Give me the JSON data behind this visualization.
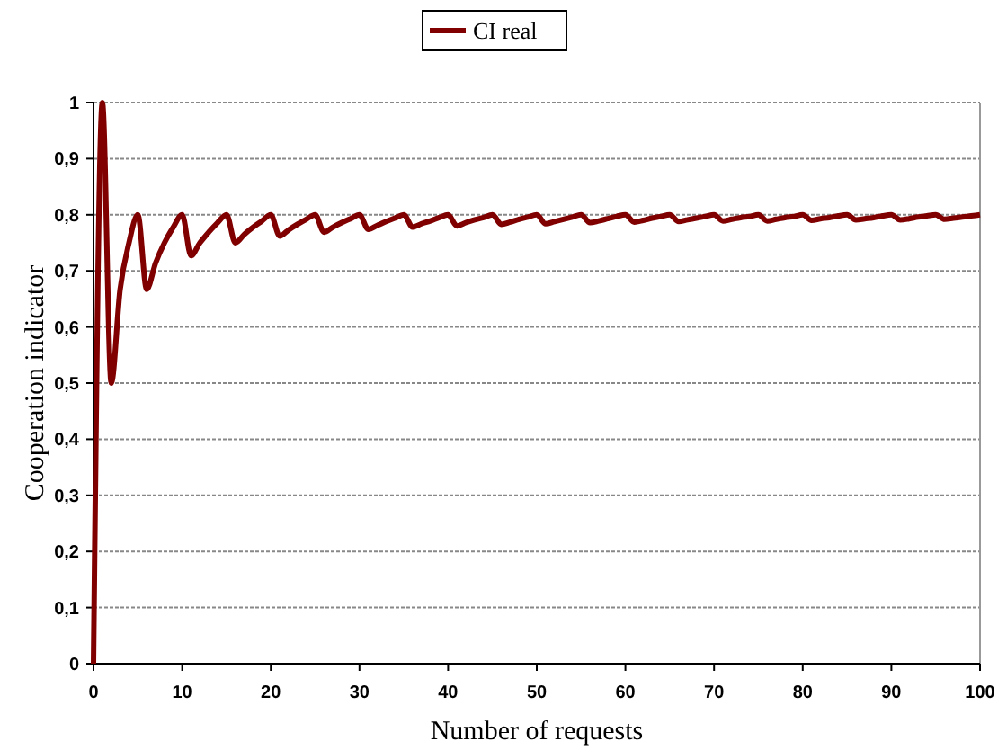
{
  "chart_data": {
    "type": "line",
    "xlabel": "Number of requests",
    "ylabel": "Cooperation indicator",
    "x": [
      0,
      1,
      2,
      3,
      4,
      5,
      6,
      7,
      8,
      9,
      10,
      11,
      12,
      13,
      14,
      15,
      16,
      17,
      18,
      19,
      20,
      21,
      22,
      23,
      24,
      25,
      26,
      27,
      28,
      29,
      30,
      31,
      32,
      33,
      34,
      35,
      36,
      37,
      38,
      39,
      40,
      41,
      42,
      43,
      44,
      45,
      46,
      47,
      48,
      49,
      50,
      51,
      52,
      53,
      54,
      55,
      56,
      57,
      58,
      59,
      60,
      61,
      62,
      63,
      64,
      65,
      66,
      67,
      68,
      69,
      70,
      71,
      72,
      73,
      74,
      75,
      76,
      77,
      78,
      79,
      80,
      81,
      82,
      83,
      84,
      85,
      86,
      87,
      88,
      89,
      90,
      91,
      92,
      93,
      94,
      95,
      96,
      97,
      98,
      99,
      100
    ],
    "series": [
      {
        "name": "CI real",
        "color": "#800000",
        "values": [
          0,
          1,
          0.5,
          0.667,
          0.75,
          0.8,
          0.667,
          0.714,
          0.75,
          0.778,
          0.8,
          0.727,
          0.75,
          0.769,
          0.786,
          0.8,
          0.75,
          0.765,
          0.778,
          0.789,
          0.8,
          0.762,
          0.773,
          0.783,
          0.792,
          0.8,
          0.769,
          0.778,
          0.786,
          0.793,
          0.8,
          0.774,
          0.781,
          0.788,
          0.794,
          0.8,
          0.778,
          0.784,
          0.789,
          0.795,
          0.8,
          0.78,
          0.786,
          0.791,
          0.795,
          0.8,
          0.783,
          0.787,
          0.792,
          0.796,
          0.8,
          0.784,
          0.788,
          0.792,
          0.796,
          0.8,
          0.786,
          0.789,
          0.793,
          0.797,
          0.8,
          0.787,
          0.79,
          0.794,
          0.797,
          0.8,
          0.788,
          0.791,
          0.794,
          0.797,
          0.8,
          0.789,
          0.792,
          0.795,
          0.797,
          0.8,
          0.789,
          0.792,
          0.795,
          0.797,
          0.8,
          0.79,
          0.793,
          0.795,
          0.798,
          0.8,
          0.791,
          0.793,
          0.795,
          0.798,
          0.8,
          0.791,
          0.793,
          0.796,
          0.798,
          0.8,
          0.792,
          0.794,
          0.796,
          0.798,
          0.8
        ]
      }
    ],
    "xlim": [
      0,
      100
    ],
    "xticks": [
      0,
      10,
      20,
      30,
      40,
      50,
      60,
      70,
      80,
      90,
      100
    ],
    "ylim": [
      0,
      1
    ],
    "yticks": [
      0,
      {
        "value": 0.1,
        "label": "0,1"
      },
      {
        "value": 0.2,
        "label": "0,2"
      },
      {
        "value": 0.3,
        "label": "0,3"
      },
      {
        "value": 0.4,
        "label": "0,4"
      },
      {
        "value": 0.5,
        "label": "0,5"
      },
      {
        "value": 0.6,
        "label": "0,6"
      },
      {
        "value": 0.7,
        "label": "0,7"
      },
      {
        "value": 0.8,
        "label": "0,8"
      },
      {
        "value": 0.9,
        "label": "0,9"
      },
      1
    ],
    "grid": "y",
    "legend": "top",
    "line_style": "solid"
  }
}
